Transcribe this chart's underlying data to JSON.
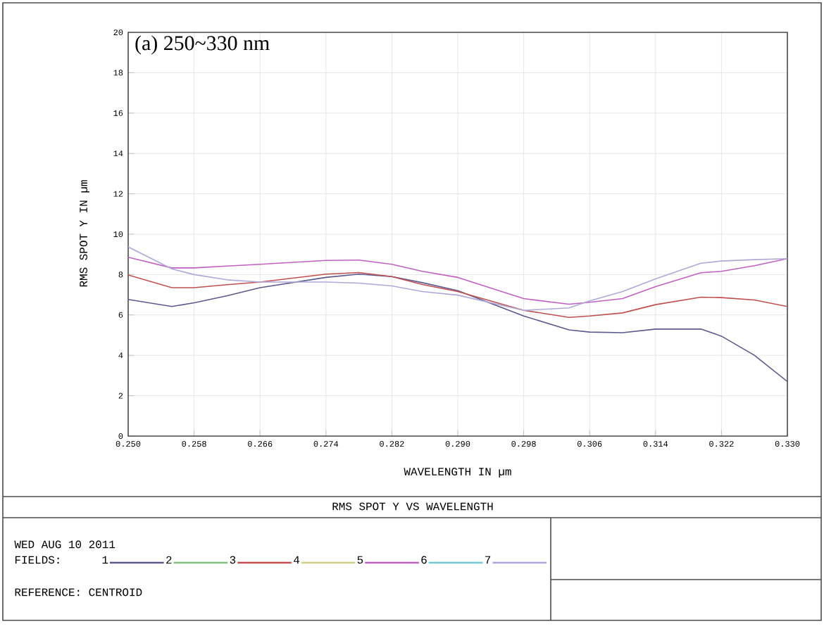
{
  "chart_data": {
    "type": "line",
    "title": "RMS SPOT Y VS WAVELENGTH",
    "xlabel": "WAVELENGTH IN µm",
    "ylabel": "RMS SPOT Y IN µm",
    "legend_title": "FIELDS:",
    "annotations": [
      "(a) 250~330 nm",
      "WED AUG 10 2011",
      "REFERENCE: CENTROID"
    ],
    "x": [
      0.25,
      0.2553,
      0.258,
      0.262,
      0.266,
      0.274,
      0.278,
      0.282,
      0.2857,
      0.29,
      0.298,
      0.3035,
      0.306,
      0.31,
      0.314,
      0.3195,
      0.322,
      0.326,
      0.33
    ],
    "series": [
      {
        "name": "1",
        "color": "#5a5a8c",
        "values": [
          6.77,
          6.42,
          6.6,
          6.95,
          7.35,
          7.86,
          8.02,
          7.9,
          7.6,
          7.2,
          5.95,
          5.26,
          5.15,
          5.12,
          5.3,
          5.3,
          4.95,
          4.0,
          2.7
        ]
      },
      {
        "name": "2",
        "color": "#80c080",
        "values": [
          null,
          null,
          null,
          null,
          null,
          null,
          null,
          null,
          null,
          null,
          null,
          null,
          null,
          null,
          null,
          null,
          null,
          null,
          null
        ]
      },
      {
        "name": "3",
        "color": "#c05050",
        "values": [
          7.98,
          7.35,
          7.35,
          7.5,
          7.63,
          8.02,
          8.1,
          7.9,
          7.51,
          7.16,
          6.23,
          5.88,
          5.95,
          6.1,
          6.51,
          6.88,
          6.86,
          6.74,
          6.42
        ]
      },
      {
        "name": "4",
        "color": "#d0d080",
        "values": [
          null,
          null,
          null,
          null,
          null,
          null,
          null,
          null,
          null,
          null,
          null,
          null,
          null,
          null,
          null,
          null,
          null,
          null,
          null
        ]
      },
      {
        "name": "5",
        "color": "#c060c0",
        "values": [
          8.86,
          8.33,
          8.33,
          8.42,
          8.51,
          8.7,
          8.72,
          8.51,
          8.16,
          7.86,
          6.81,
          6.53,
          6.63,
          6.81,
          7.4,
          8.09,
          8.16,
          8.44,
          8.79
        ]
      },
      {
        "name": "6",
        "color": "#70c8d0",
        "values": [
          null,
          null,
          null,
          null,
          null,
          null,
          null,
          null,
          null,
          null,
          null,
          null,
          null,
          null,
          null,
          null,
          null,
          null,
          null
        ]
      },
      {
        "name": "7",
        "color": "#b0a8d8",
        "values": [
          9.37,
          8.28,
          8.0,
          7.74,
          7.63,
          7.63,
          7.58,
          7.44,
          7.16,
          6.98,
          6.23,
          6.35,
          6.7,
          7.16,
          7.79,
          8.56,
          8.67,
          8.74,
          8.79
        ]
      }
    ],
    "xlim": [
      0.25,
      0.33
    ],
    "ylim": [
      0,
      20
    ],
    "xticks": [
      {
        "value": 0.25,
        "label": "0.250"
      },
      {
        "value": 0.258,
        "label": "0.258"
      },
      {
        "value": 0.266,
        "label": "0.266"
      },
      {
        "value": 0.274,
        "label": "0.274"
      },
      {
        "value": 0.282,
        "label": "0.282"
      },
      {
        "value": 0.29,
        "label": "0.290"
      },
      {
        "value": 0.298,
        "label": "0.298"
      },
      {
        "value": 0.306,
        "label": "0.306"
      },
      {
        "value": 0.314,
        "label": "0.314"
      },
      {
        "value": 0.322,
        "label": "0.322"
      },
      {
        "value": 0.33,
        "label": "0.330"
      }
    ],
    "yticks": [
      0,
      2,
      4,
      6,
      8,
      10,
      12,
      14,
      16,
      18,
      20
    ],
    "grid": true,
    "legend": "bottom",
    "marker": "none",
    "line_style": "solid"
  }
}
